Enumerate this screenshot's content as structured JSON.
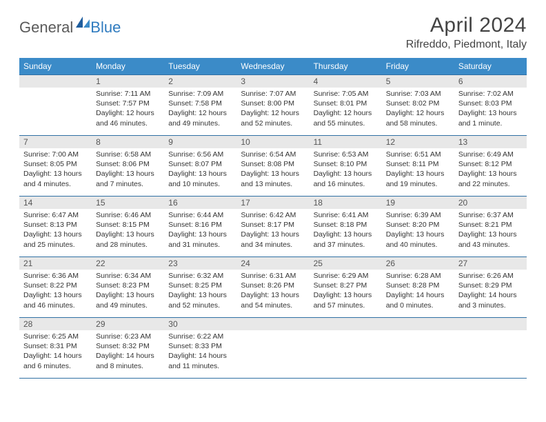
{
  "brand": {
    "general": "General",
    "blue": "Blue"
  },
  "title": "April 2024",
  "location": "Rifreddo, Piedmont, Italy",
  "colors": {
    "header_bg": "#3b8bc8",
    "border": "#2f6fa3",
    "daynum_bg": "#e8e8e8",
    "text": "#333333",
    "title": "#444444",
    "logo_gray": "#5a5a5a",
    "logo_blue": "#2f7bbf"
  },
  "weekdays": [
    "Sunday",
    "Monday",
    "Tuesday",
    "Wednesday",
    "Thursday",
    "Friday",
    "Saturday"
  ],
  "weeks": [
    [
      null,
      {
        "n": "1",
        "sunrise": "Sunrise: 7:11 AM",
        "sunset": "Sunset: 7:57 PM",
        "dl1": "Daylight: 12 hours",
        "dl2": "and 46 minutes."
      },
      {
        "n": "2",
        "sunrise": "Sunrise: 7:09 AM",
        "sunset": "Sunset: 7:58 PM",
        "dl1": "Daylight: 12 hours",
        "dl2": "and 49 minutes."
      },
      {
        "n": "3",
        "sunrise": "Sunrise: 7:07 AM",
        "sunset": "Sunset: 8:00 PM",
        "dl1": "Daylight: 12 hours",
        "dl2": "and 52 minutes."
      },
      {
        "n": "4",
        "sunrise": "Sunrise: 7:05 AM",
        "sunset": "Sunset: 8:01 PM",
        "dl1": "Daylight: 12 hours",
        "dl2": "and 55 minutes."
      },
      {
        "n": "5",
        "sunrise": "Sunrise: 7:03 AM",
        "sunset": "Sunset: 8:02 PM",
        "dl1": "Daylight: 12 hours",
        "dl2": "and 58 minutes."
      },
      {
        "n": "6",
        "sunrise": "Sunrise: 7:02 AM",
        "sunset": "Sunset: 8:03 PM",
        "dl1": "Daylight: 13 hours",
        "dl2": "and 1 minute."
      }
    ],
    [
      {
        "n": "7",
        "sunrise": "Sunrise: 7:00 AM",
        "sunset": "Sunset: 8:05 PM",
        "dl1": "Daylight: 13 hours",
        "dl2": "and 4 minutes."
      },
      {
        "n": "8",
        "sunrise": "Sunrise: 6:58 AM",
        "sunset": "Sunset: 8:06 PM",
        "dl1": "Daylight: 13 hours",
        "dl2": "and 7 minutes."
      },
      {
        "n": "9",
        "sunrise": "Sunrise: 6:56 AM",
        "sunset": "Sunset: 8:07 PM",
        "dl1": "Daylight: 13 hours",
        "dl2": "and 10 minutes."
      },
      {
        "n": "10",
        "sunrise": "Sunrise: 6:54 AM",
        "sunset": "Sunset: 8:08 PM",
        "dl1": "Daylight: 13 hours",
        "dl2": "and 13 minutes."
      },
      {
        "n": "11",
        "sunrise": "Sunrise: 6:53 AM",
        "sunset": "Sunset: 8:10 PM",
        "dl1": "Daylight: 13 hours",
        "dl2": "and 16 minutes."
      },
      {
        "n": "12",
        "sunrise": "Sunrise: 6:51 AM",
        "sunset": "Sunset: 8:11 PM",
        "dl1": "Daylight: 13 hours",
        "dl2": "and 19 minutes."
      },
      {
        "n": "13",
        "sunrise": "Sunrise: 6:49 AM",
        "sunset": "Sunset: 8:12 PM",
        "dl1": "Daylight: 13 hours",
        "dl2": "and 22 minutes."
      }
    ],
    [
      {
        "n": "14",
        "sunrise": "Sunrise: 6:47 AM",
        "sunset": "Sunset: 8:13 PM",
        "dl1": "Daylight: 13 hours",
        "dl2": "and 25 minutes."
      },
      {
        "n": "15",
        "sunrise": "Sunrise: 6:46 AM",
        "sunset": "Sunset: 8:15 PM",
        "dl1": "Daylight: 13 hours",
        "dl2": "and 28 minutes."
      },
      {
        "n": "16",
        "sunrise": "Sunrise: 6:44 AM",
        "sunset": "Sunset: 8:16 PM",
        "dl1": "Daylight: 13 hours",
        "dl2": "and 31 minutes."
      },
      {
        "n": "17",
        "sunrise": "Sunrise: 6:42 AM",
        "sunset": "Sunset: 8:17 PM",
        "dl1": "Daylight: 13 hours",
        "dl2": "and 34 minutes."
      },
      {
        "n": "18",
        "sunrise": "Sunrise: 6:41 AM",
        "sunset": "Sunset: 8:18 PM",
        "dl1": "Daylight: 13 hours",
        "dl2": "and 37 minutes."
      },
      {
        "n": "19",
        "sunrise": "Sunrise: 6:39 AM",
        "sunset": "Sunset: 8:20 PM",
        "dl1": "Daylight: 13 hours",
        "dl2": "and 40 minutes."
      },
      {
        "n": "20",
        "sunrise": "Sunrise: 6:37 AM",
        "sunset": "Sunset: 8:21 PM",
        "dl1": "Daylight: 13 hours",
        "dl2": "and 43 minutes."
      }
    ],
    [
      {
        "n": "21",
        "sunrise": "Sunrise: 6:36 AM",
        "sunset": "Sunset: 8:22 PM",
        "dl1": "Daylight: 13 hours",
        "dl2": "and 46 minutes."
      },
      {
        "n": "22",
        "sunrise": "Sunrise: 6:34 AM",
        "sunset": "Sunset: 8:23 PM",
        "dl1": "Daylight: 13 hours",
        "dl2": "and 49 minutes."
      },
      {
        "n": "23",
        "sunrise": "Sunrise: 6:32 AM",
        "sunset": "Sunset: 8:25 PM",
        "dl1": "Daylight: 13 hours",
        "dl2": "and 52 minutes."
      },
      {
        "n": "24",
        "sunrise": "Sunrise: 6:31 AM",
        "sunset": "Sunset: 8:26 PM",
        "dl1": "Daylight: 13 hours",
        "dl2": "and 54 minutes."
      },
      {
        "n": "25",
        "sunrise": "Sunrise: 6:29 AM",
        "sunset": "Sunset: 8:27 PM",
        "dl1": "Daylight: 13 hours",
        "dl2": "and 57 minutes."
      },
      {
        "n": "26",
        "sunrise": "Sunrise: 6:28 AM",
        "sunset": "Sunset: 8:28 PM",
        "dl1": "Daylight: 14 hours",
        "dl2": "and 0 minutes."
      },
      {
        "n": "27",
        "sunrise": "Sunrise: 6:26 AM",
        "sunset": "Sunset: 8:29 PM",
        "dl1": "Daylight: 14 hours",
        "dl2": "and 3 minutes."
      }
    ],
    [
      {
        "n": "28",
        "sunrise": "Sunrise: 6:25 AM",
        "sunset": "Sunset: 8:31 PM",
        "dl1": "Daylight: 14 hours",
        "dl2": "and 6 minutes."
      },
      {
        "n": "29",
        "sunrise": "Sunrise: 6:23 AM",
        "sunset": "Sunset: 8:32 PM",
        "dl1": "Daylight: 14 hours",
        "dl2": "and 8 minutes."
      },
      {
        "n": "30",
        "sunrise": "Sunrise: 6:22 AM",
        "sunset": "Sunset: 8:33 PM",
        "dl1": "Daylight: 14 hours",
        "dl2": "and 11 minutes."
      },
      null,
      null,
      null,
      null
    ]
  ]
}
